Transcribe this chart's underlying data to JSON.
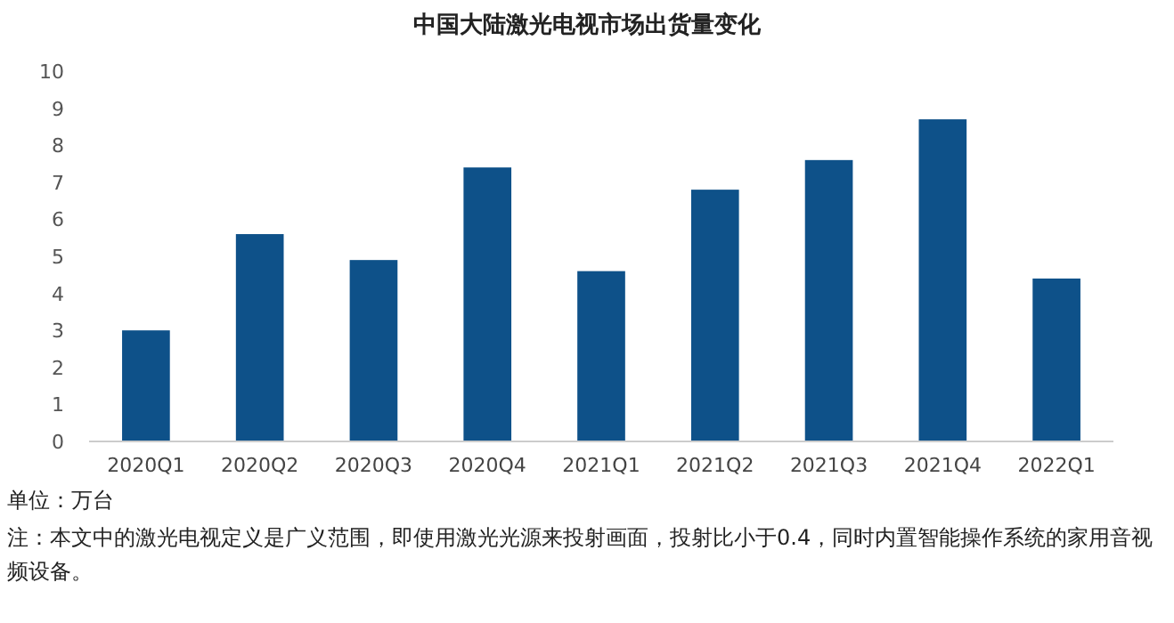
{
  "chart_data": {
    "type": "bar",
    "title": "中国大陆激光电视市场出货量变化",
    "categories": [
      "2020Q1",
      "2020Q2",
      "2020Q3",
      "2020Q4",
      "2021Q1",
      "2021Q2",
      "2021Q3",
      "2021Q4",
      "2022Q1"
    ],
    "values": [
      3.0,
      5.6,
      4.9,
      7.4,
      4.6,
      6.8,
      7.6,
      8.7,
      4.4
    ],
    "color": "#0e5189",
    "ylim": [
      0,
      10
    ],
    "yticks": [
      0,
      1,
      2,
      3,
      4,
      5,
      6,
      7,
      8,
      9,
      10
    ],
    "grid": false,
    "annotations": [
      "单位：万台",
      "注：本文中的激光电视定义是广义范围，即使用激光光源来投射画面，投射比小于0.4，同时内置智能操作系统的家用音视频设备。"
    ]
  }
}
